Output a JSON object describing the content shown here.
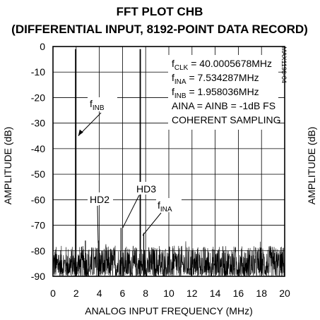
{
  "chart_data": {
    "type": "line",
    "title": "FFT PLOT CHB",
    "subtitle": "(DIFFERENTIAL INPUT, 8192-POINT DATA RECORD)",
    "xlabel": "ANALOG INPUT FREQUENCY (MHz)",
    "ylabel": "AMPLITUDE (dB)",
    "xlim": [
      0,
      20
    ],
    "ylim": [
      -90,
      0
    ],
    "x_ticks": [
      "0",
      "2",
      "4",
      "6",
      "8",
      "10",
      "12",
      "14",
      "16",
      "18",
      "20"
    ],
    "y_ticks": [
      "0",
      "-10",
      "-20",
      "-30",
      "-40",
      "-50",
      "-60",
      "-70",
      "-80",
      "-90"
    ],
    "grid": true,
    "noise_floor_db": [
      -90,
      -78
    ],
    "tones": [
      {
        "x": 1.958036,
        "y": -1
      },
      {
        "x": 7.534287,
        "y": -1
      },
      {
        "x": 3.916,
        "y": -76
      },
      {
        "x": 5.874,
        "y": -71
      },
      {
        "x": 7.832,
        "y": -73
      },
      {
        "x": 2.8,
        "y": -76
      }
    ],
    "parameters": [
      {
        "label": "f",
        "sub": "CLK",
        "value": " = 40.0005678MHz"
      },
      {
        "label": "f",
        "sub": "INA",
        "value": " = 7.534287MHz"
      },
      {
        "label": "f",
        "sub": "INB",
        "value": " = 1.958036MHz"
      },
      {
        "label": "AINA = AINB = -1dB FS",
        "sub": "",
        "value": ""
      },
      {
        "label": "COHERENT SAMPLING",
        "sub": "",
        "value": ""
      }
    ],
    "annotations": {
      "finb": {
        "label": "f",
        "sub": "INB",
        "target_x": 2.0,
        "target_y": -35
      },
      "hd2": {
        "label": "HD2",
        "target_x": 3.9,
        "target_y": -77
      },
      "hd3": {
        "label": "HD3",
        "target_x": 5.9,
        "target_y": -71
      },
      "fina": {
        "label": "f",
        "sub": "INA",
        "target_x": 7.5,
        "target_y": -74
      }
    },
    "watermark": "MAX1196-04",
    "clipped_right_label": "AMPLITUDE (dB)"
  }
}
